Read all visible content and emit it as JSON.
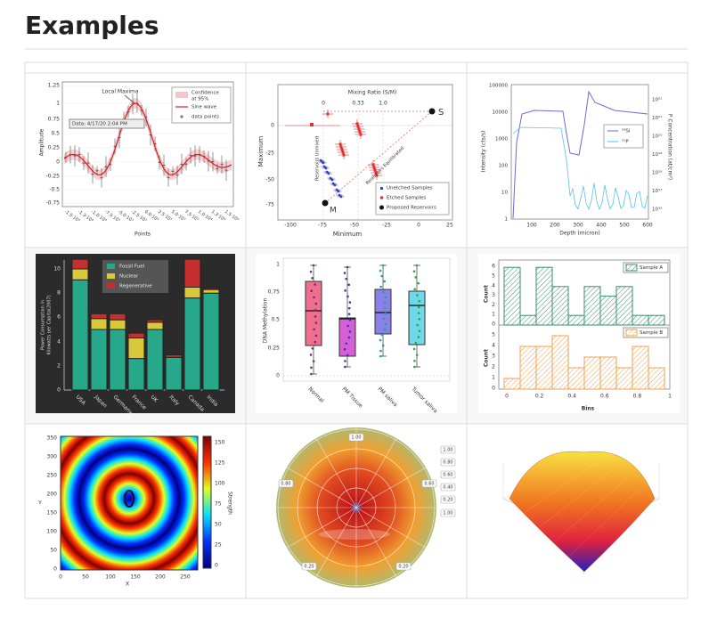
{
  "header": {
    "title": "Examples"
  },
  "examples": [
    {
      "y_ticks": [
        "1.25",
        "1",
        "0.75",
        "0.5",
        "0.25",
        "0",
        "-0.25",
        "-0.5",
        "-0.75"
      ],
      "x_ticks": [
        "-1.5·10⁴",
        "-1.3·10⁴",
        "-1.0·10⁴",
        "-7.5·10³",
        "-5.0·10³",
        "-2.5·10³",
        "0.0·10⁰",
        "2.5·10³",
        "5.0·10³",
        "7.5·10³",
        "1.0·10⁴",
        "1.3·10⁴",
        "1.5·10⁴"
      ],
      "x_label": "Points",
      "y_label": "Amplitude",
      "annotation": "Local Maxima",
      "timestamp": "Data: 4/17/20 2:04 PM",
      "legend": [
        "Confidence",
        "at 95%",
        "Sine wave",
        "data points"
      ]
    },
    {
      "x_ticks": [
        "-100",
        "-75",
        "-50",
        "-25",
        "0",
        "25"
      ],
      "y_ticks": [
        "0",
        "-25",
        "-50",
        "-75"
      ],
      "x_label": "Minimum",
      "y_label": "Maximum",
      "top_title": "Mixing Ratio (S/M)",
      "top_ticks": [
        "0",
        "0.33",
        "1.0"
      ],
      "point_s": "S",
      "point_m": "M",
      "region_1": "Reservoirs Unmixed",
      "region_2": "Reservoirs Equilibrated",
      "legend": [
        "Unetched Samples",
        "Etched Samples",
        "Proposed Reservoirs"
      ]
    },
    {
      "y_ticks": [
        "100000",
        "10000",
        "1000",
        "100",
        "10",
        "1"
      ],
      "x_ticks": [
        "100",
        "200",
        "300",
        "400",
        "500",
        "600"
      ],
      "y2_ticks": [
        "10²²",
        "10²¹",
        "10²⁰",
        "10¹⁹",
        "10¹⁸",
        "10¹⁷",
        "10¹⁶"
      ],
      "x_label": "Depth (micron)",
      "y_label": "Intensity (cts/s)",
      "y2_label": "P Concentration (at/cm³)",
      "legend": [
        "²⁸Si",
        "³¹P"
      ]
    },
    {
      "y_ticks": [
        "0",
        "2",
        "4",
        "6",
        "8",
        "10"
      ],
      "y_label": [
        "Power Consumption in",
        "Kilowatts per Capita(2007)"
      ],
      "categories": [
        "USA",
        "Japan",
        "Germany",
        "France",
        "UK",
        "Italy",
        "Canada",
        "India"
      ],
      "legend": [
        "Fossil Fuel",
        "Nuclear",
        "Regenerative"
      ]
    },
    {
      "y_ticks": [
        "0",
        "0.25",
        "0.5",
        "0.75",
        "1"
      ],
      "y_label": "DNA Methylation",
      "categories": [
        "Normal",
        "PM Tissue",
        "PM saliva",
        "Tumor saliva"
      ]
    },
    {
      "top_y_ticks": [
        "0",
        "1",
        "2",
        "3",
        "4",
        "5",
        "6"
      ],
      "bottom_y_ticks": [
        "0",
        "1",
        "2",
        "3",
        "4",
        "5"
      ],
      "x_ticks": [
        "0",
        "0.2",
        "0.4",
        "0.6",
        "0.8",
        "1"
      ],
      "y_label": "Count",
      "x_label": "Bins",
      "legend": [
        "Sample A",
        "Sample B"
      ]
    },
    {
      "y_ticks": [
        "350",
        "300",
        "250",
        "200",
        "150",
        "100",
        "50",
        "0"
      ],
      "x_ticks": [
        "0",
        "50",
        "100",
        "150",
        "200",
        "250"
      ],
      "colorbar_ticks": [
        "150",
        "125",
        "100",
        "75",
        "50",
        "25",
        "0"
      ],
      "x_label": "X",
      "y_label": "Y",
      "colorbar_label": "Strength"
    },
    {
      "labels": [
        "1.00",
        "0.80",
        "0.60",
        "1.00",
        "0.80",
        "0.60",
        "0.40",
        "0.20",
        "1.00",
        "0.20",
        "0.20"
      ]
    }
  ]
}
